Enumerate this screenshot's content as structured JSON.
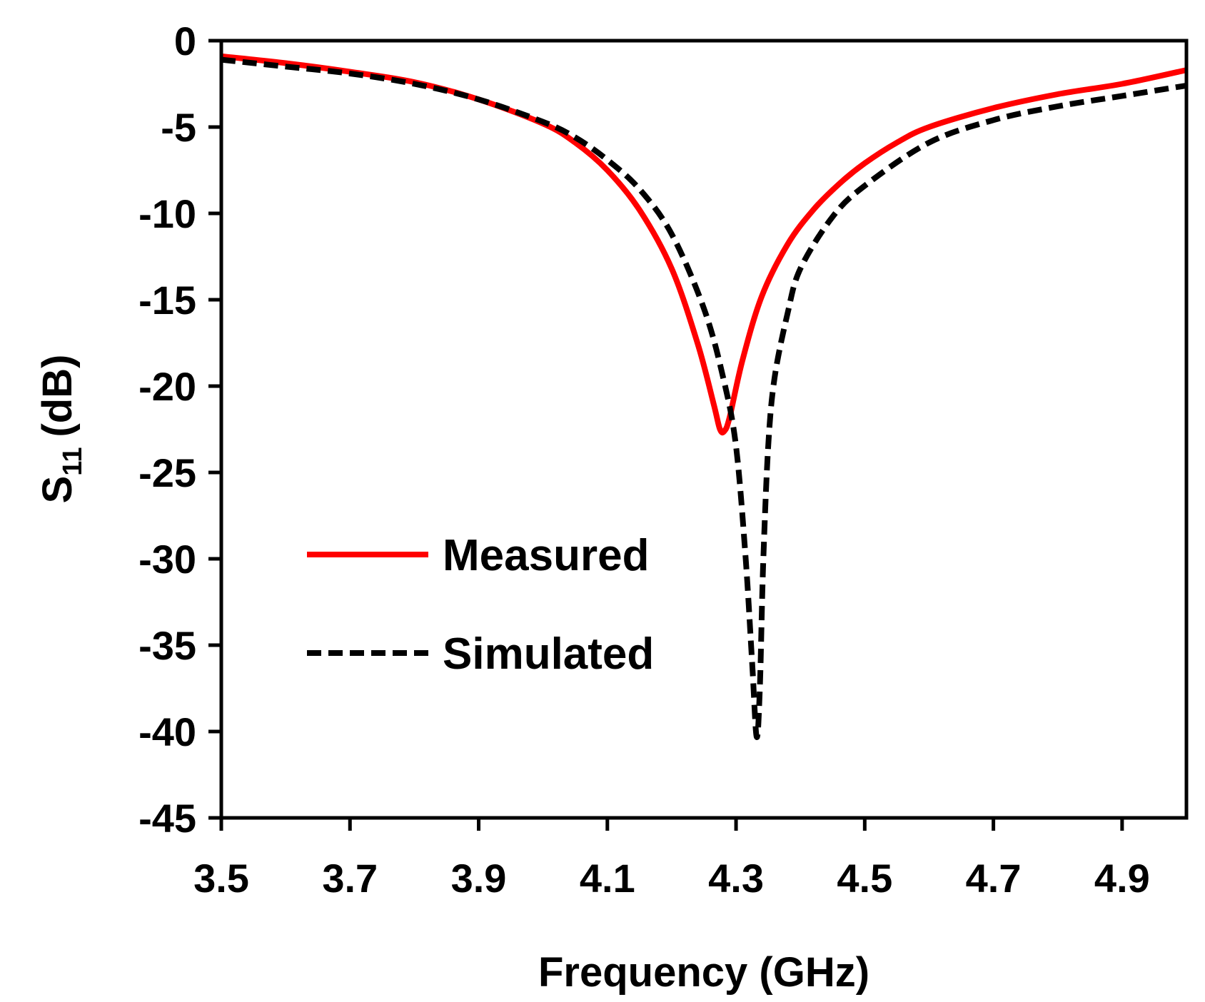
{
  "chart_data": {
    "type": "line",
    "title": "",
    "xlabel": "Frequency (GHz)",
    "ylabel": "S11 (dB)",
    "ylabel_parts": {
      "main": "S",
      "sub": "11",
      "unit": "(dB)"
    },
    "xlim": [
      3.5,
      5.0
    ],
    "ylim": [
      -45,
      0
    ],
    "xticks": [
      3.5,
      3.7,
      3.9,
      4.1,
      4.3,
      4.5,
      4.7,
      4.9
    ],
    "xtick_labels": [
      "3.5",
      "3.7",
      "3.9",
      "4.1",
      "4.3",
      "4.5",
      "4.7",
      "4.9"
    ],
    "yticks": [
      0,
      -5,
      -10,
      -15,
      -20,
      -25,
      -30,
      -35,
      -40,
      -45
    ],
    "ytick_labels": [
      "0",
      "-5",
      "-10",
      "-15",
      "-20",
      "-25",
      "-30",
      "-35",
      "-40",
      "-45"
    ],
    "grid": false,
    "legend_position": "center-left",
    "series": [
      {
        "name": "Measured",
        "color": "#ff0000",
        "style": "solid",
        "x": [
          3.5,
          3.6,
          3.7,
          3.8,
          3.9,
          4.0,
          4.05,
          4.1,
          4.15,
          4.2,
          4.24,
          4.265,
          4.275,
          4.282,
          4.29,
          4.31,
          4.34,
          4.38,
          4.42,
          4.46,
          4.5,
          4.55,
          4.6,
          4.7,
          4.8,
          4.9,
          5.0
        ],
        "y": [
          -0.9,
          -1.3,
          -1.8,
          -2.4,
          -3.4,
          -4.8,
          -5.9,
          -7.5,
          -9.8,
          -13.2,
          -17.5,
          -21.0,
          -22.5,
          -22.6,
          -21.8,
          -18.5,
          -14.8,
          -11.8,
          -9.8,
          -8.3,
          -7.1,
          -5.9,
          -5.0,
          -3.9,
          -3.1,
          -2.5,
          -1.7
        ]
      },
      {
        "name": "Simulated",
        "color": "#000000",
        "style": "dashed",
        "x": [
          3.5,
          3.6,
          3.7,
          3.8,
          3.9,
          4.0,
          4.05,
          4.1,
          4.15,
          4.2,
          4.25,
          4.28,
          4.3,
          4.315,
          4.325,
          4.332,
          4.337,
          4.342,
          4.35,
          4.36,
          4.38,
          4.4,
          4.45,
          4.5,
          4.6,
          4.7,
          4.8,
          4.9,
          5.0
        ],
        "y": [
          -1.1,
          -1.5,
          -1.9,
          -2.5,
          -3.4,
          -4.7,
          -5.6,
          -6.9,
          -8.6,
          -11.2,
          -15.5,
          -19.5,
          -23.5,
          -30.0,
          -36.0,
          -40.3,
          -37.5,
          -30.5,
          -23.5,
          -19.5,
          -15.8,
          -13.2,
          -10.2,
          -8.4,
          -5.9,
          -4.6,
          -3.8,
          -3.2,
          -2.6
        ]
      }
    ]
  }
}
